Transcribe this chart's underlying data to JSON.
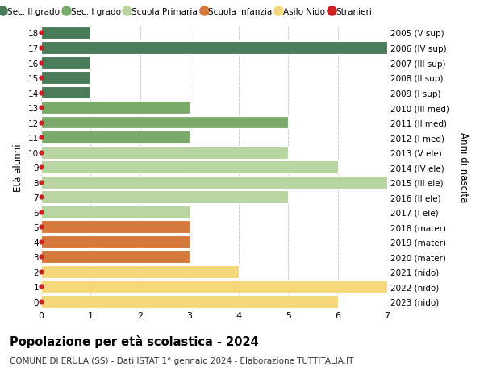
{
  "ages": [
    18,
    17,
    16,
    15,
    14,
    13,
    12,
    11,
    10,
    9,
    8,
    7,
    6,
    5,
    4,
    3,
    2,
    1,
    0
  ],
  "labels_right": [
    "2005 (V sup)",
    "2006 (IV sup)",
    "2007 (III sup)",
    "2008 (II sup)",
    "2009 (I sup)",
    "2010 (III med)",
    "2011 (II med)",
    "2012 (I med)",
    "2013 (V ele)",
    "2014 (IV ele)",
    "2015 (III ele)",
    "2016 (II ele)",
    "2017 (I ele)",
    "2018 (mater)",
    "2019 (mater)",
    "2020 (mater)",
    "2021 (nido)",
    "2022 (nido)",
    "2023 (nido)"
  ],
  "values": [
    1,
    7,
    1,
    1,
    1,
    3,
    5,
    3,
    5,
    6,
    7,
    5,
    3,
    3,
    3,
    3,
    4,
    7,
    6
  ],
  "colors": [
    "#4a7c59",
    "#4a7c59",
    "#4a7c59",
    "#4a7c59",
    "#4a7c59",
    "#7aaa6a",
    "#7aaa6a",
    "#7aaa6a",
    "#b8d4a0",
    "#b8d4a0",
    "#b8d4a0",
    "#b8d4a0",
    "#b8d4a0",
    "#d4783c",
    "#d4783c",
    "#d4783c",
    "#f5d87a",
    "#f5d87a",
    "#f5d87a"
  ],
  "legend_labels": [
    "Sec. II grado",
    "Sec. I grado",
    "Scuola Primaria",
    "Scuola Infanzia",
    "Asilo Nido",
    "Stranieri"
  ],
  "legend_colors": [
    "#4a7c59",
    "#7aaa6a",
    "#b8d4a0",
    "#d4783c",
    "#f5d87a",
    "#cc2222"
  ],
  "stranieri_marker_color": "#cc2222",
  "title": "Popolazione per età scolastica - 2024",
  "subtitle": "COMUNE DI ERULA (SS) - Dati ISTAT 1° gennaio 2024 - Elaborazione TUTTITALIA.IT",
  "ylabel": "Età alunni",
  "right_label": "Anni di nascita",
  "xlim": [
    0,
    7
  ],
  "xticks": [
    0,
    1,
    2,
    3,
    4,
    5,
    6,
    7
  ],
  "bar_height": 0.85,
  "bg_color": "#ffffff",
  "grid_color": "#cccccc"
}
